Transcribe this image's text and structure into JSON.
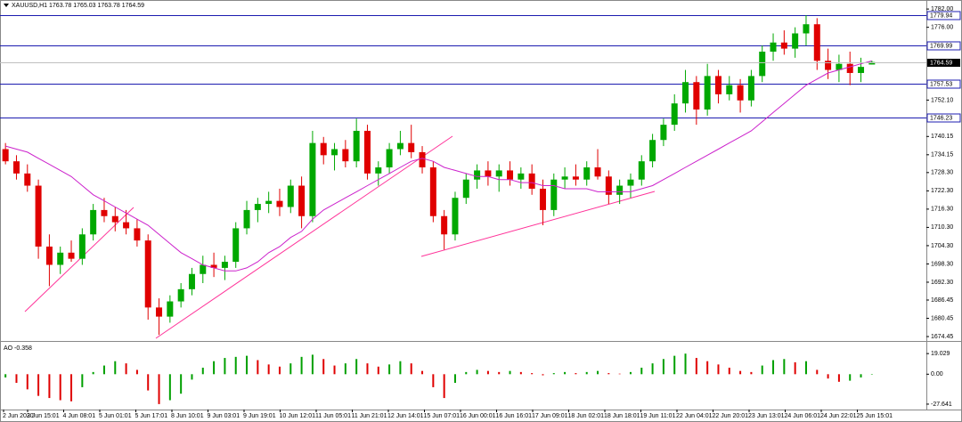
{
  "chart_data": {
    "type": "candlestick",
    "title": "XAUUSD,H1 1763.78 1765.03 1763.78 1764.59",
    "up_color": "#00a800",
    "down_color": "#e00000",
    "ylim": [
      1673,
      1783.5
    ],
    "yticks": [
      {
        "value": 1782,
        "label": "1782.00"
      },
      {
        "value": 1776,
        "label": "1776.00"
      },
      {
        "value": 1752.1,
        "label": "1752.10"
      },
      1740.15,
      1734.15,
      {
        "value": 1728.3,
        "label": "1728.30"
      },
      {
        "value": 1722.3,
        "label": "1722.30"
      },
      {
        "value": 1716.3,
        "label": "1716.30"
      },
      {
        "value": 1710.3,
        "label": "1710.30"
      },
      {
        "value": 1704.3,
        "label": "1704.30"
      },
      {
        "value": 1698.3,
        "label": "1698.30"
      },
      {
        "value": 1692.3,
        "label": "1692.30"
      },
      1686.45,
      1680.45,
      1674.45
    ],
    "levels": [
      1779.94,
      1769.99,
      1757.53,
      1746.23
    ],
    "level_color": "#1c1cb0",
    "x_labels": [
      "2 Jun 2020",
      "3 Jun 15:01",
      "4 Jun 08:01",
      "5 Jun 01:01",
      "5 Jun 17:01",
      "8 Jun 10:01",
      "9 Jun 03:01",
      "9 Jun 19:01",
      "10 Jun 12:01",
      "11 Jun 05:01",
      "11 Jun 21:01",
      "12 Jun 14:01",
      "15 Jun 07:01",
      "16 Jun 00:01",
      "16 Jun 16:01",
      "17 Jun 09:01",
      "18 Jun 02:01",
      "18 Jun 18:01",
      "19 Jun 11:01",
      "22 Jun 04:01",
      "22 Jun 20:01",
      "23 Jun 13:01",
      "24 Jun 06:01",
      "24 Jun 22:01",
      "25 Jun 15:01"
    ],
    "candles": [
      [
        1736,
        1738,
        1731,
        1732
      ],
      [
        1732,
        1734,
        1726,
        1728
      ],
      [
        1728,
        1731,
        1722,
        1724
      ],
      [
        1724,
        1726,
        1700,
        1704
      ],
      [
        1704,
        1708,
        1691,
        1698
      ],
      [
        1698,
        1704,
        1695,
        1702
      ],
      [
        1702,
        1706,
        1699,
        1700
      ],
      [
        1700,
        1710,
        1698,
        1708
      ],
      [
        1708,
        1718,
        1706,
        1716
      ],
      [
        1716,
        1720,
        1712,
        1714
      ],
      [
        1714,
        1717,
        1709,
        1712
      ],
      [
        1712,
        1716,
        1708,
        1710
      ],
      [
        1710,
        1713,
        1704,
        1706
      ],
      [
        1706,
        1708,
        1680,
        1684
      ],
      [
        1684,
        1687,
        1675,
        1681
      ],
      [
        1681,
        1688,
        1679,
        1686
      ],
      [
        1686,
        1692,
        1684,
        1690
      ],
      [
        1690,
        1697,
        1688,
        1695
      ],
      [
        1695,
        1701,
        1692,
        1698
      ],
      [
        1698,
        1702,
        1694,
        1697
      ],
      [
        1697,
        1701,
        1693,
        1699
      ],
      [
        1699,
        1712,
        1697,
        1710
      ],
      [
        1710,
        1719,
        1708,
        1716
      ],
      [
        1716,
        1720,
        1712,
        1718
      ],
      [
        1718,
        1722,
        1715,
        1719
      ],
      [
        1719,
        1723,
        1714,
        1717
      ],
      [
        1717,
        1726,
        1715,
        1724
      ],
      [
        1724,
        1727,
        1710,
        1714
      ],
      [
        1714,
        1742,
        1712,
        1738
      ],
      [
        1738,
        1740,
        1731,
        1734
      ],
      [
        1734,
        1738,
        1729,
        1736
      ],
      [
        1736,
        1739,
        1730,
        1732
      ],
      [
        1732,
        1746,
        1730,
        1742
      ],
      [
        1742,
        1744,
        1726,
        1728
      ],
      [
        1728,
        1732,
        1724,
        1730
      ],
      [
        1730,
        1738,
        1728,
        1736
      ],
      [
        1736,
        1742,
        1734,
        1738
      ],
      [
        1738,
        1744,
        1733,
        1735
      ],
      [
        1735,
        1737,
        1728,
        1730
      ],
      [
        1730,
        1732,
        1712,
        1714
      ],
      [
        1714,
        1716,
        1703,
        1708
      ],
      [
        1708,
        1722,
        1706,
        1720
      ],
      [
        1720,
        1728,
        1718,
        1726
      ],
      [
        1726,
        1731,
        1723,
        1729
      ],
      [
        1729,
        1732,
        1724,
        1727
      ],
      [
        1727,
        1731,
        1722,
        1729
      ],
      [
        1729,
        1732,
        1724,
        1726
      ],
      [
        1726,
        1730,
        1723,
        1728
      ],
      [
        1728,
        1731,
        1721,
        1723
      ],
      [
        1723,
        1726,
        1711,
        1716
      ],
      [
        1716,
        1728,
        1714,
        1726
      ],
      [
        1726,
        1730,
        1723,
        1727
      ],
      [
        1727,
        1731,
        1724,
        1726
      ],
      [
        1726,
        1732,
        1724,
        1730
      ],
      [
        1730,
        1736,
        1726,
        1727
      ],
      [
        1727,
        1729,
        1718,
        1721
      ],
      [
        1721,
        1726,
        1718,
        1724
      ],
      [
        1724,
        1728,
        1720,
        1726
      ],
      [
        1726,
        1734,
        1724,
        1732
      ],
      [
        1732,
        1741,
        1730,
        1739
      ],
      [
        1739,
        1746,
        1737,
        1744
      ],
      [
        1744,
        1754,
        1742,
        1751
      ],
      [
        1751,
        1762,
        1748,
        1758
      ],
      [
        1758,
        1760,
        1744,
        1749
      ],
      [
        1749,
        1764,
        1747,
        1760
      ],
      [
        1760,
        1762,
        1751,
        1754
      ],
      [
        1754,
        1760,
        1752,
        1757
      ],
      [
        1757,
        1759,
        1748,
        1752
      ],
      [
        1752,
        1762,
        1750,
        1760
      ],
      [
        1760,
        1770,
        1758,
        1768
      ],
      [
        1768,
        1774,
        1765,
        1771
      ],
      [
        1771,
        1775,
        1767,
        1769
      ],
      [
        1769,
        1776,
        1766,
        1774
      ],
      [
        1774,
        1780,
        1770,
        1777
      ],
      [
        1777,
        1779,
        1762,
        1765
      ],
      [
        1765,
        1769,
        1759,
        1762
      ],
      [
        1762,
        1767,
        1758,
        1764
      ],
      [
        1764,
        1768,
        1757,
        1761
      ],
      [
        1761,
        1766,
        1758,
        1763
      ],
      [
        1763.78,
        1765.03,
        1763.78,
        1764.59
      ]
    ],
    "moving_average": [
      1737,
      1736,
      1735,
      1733,
      1731,
      1729,
      1727,
      1724,
      1721,
      1719,
      1717,
      1715,
      1713,
      1711,
      1708,
      1705,
      1702,
      1700,
      1698,
      1697,
      1696,
      1696,
      1697,
      1699,
      1702,
      1704,
      1707,
      1709,
      1713,
      1716,
      1718,
      1720,
      1722,
      1724,
      1726,
      1728,
      1730,
      1732,
      1733,
      1732,
      1730,
      1729,
      1728,
      1727,
      1727,
      1726,
      1726,
      1725,
      1725,
      1724,
      1724,
      1723,
      1723,
      1723,
      1722,
      1722,
      1722,
      1722,
      1723,
      1724,
      1726,
      1728,
      1730,
      1732,
      1734,
      1736,
      1738,
      1740,
      1742,
      1745,
      1748,
      1751,
      1754,
      1757,
      1759,
      1761,
      1762,
      1763,
      1764,
      1765
    ],
    "ma_color": "#cc22cc",
    "indicator": {
      "type": "bar",
      "title": "AO -0.358",
      "up_color": "#00a000",
      "down_color": "#e00000",
      "ylim": [
        -31.8,
        28.2
      ],
      "yticks": [
        19.029,
        {
          "value": 0,
          "label": "0.00"
        },
        -27.641
      ],
      "values": [
        -3,
        -8,
        -14,
        -20,
        -22,
        -24,
        -25,
        -12,
        2,
        8,
        12,
        10,
        4,
        -15,
        -27.6,
        -24,
        -18,
        -5,
        6,
        12,
        15,
        16,
        17,
        13,
        9,
        7,
        10,
        16,
        18,
        14,
        8,
        10,
        14,
        10,
        7,
        9,
        12,
        10,
        3,
        -12,
        -22,
        -8,
        2,
        4,
        3,
        2,
        3,
        2,
        1,
        -1,
        1,
        2,
        1,
        2,
        3,
        1,
        0.5,
        2,
        6,
        10,
        14,
        17,
        19,
        15,
        12,
        9,
        6,
        3,
        2,
        8,
        13,
        14,
        11,
        12,
        4,
        -4,
        -7,
        -6,
        -3,
        -0.358
      ]
    }
  }
}
